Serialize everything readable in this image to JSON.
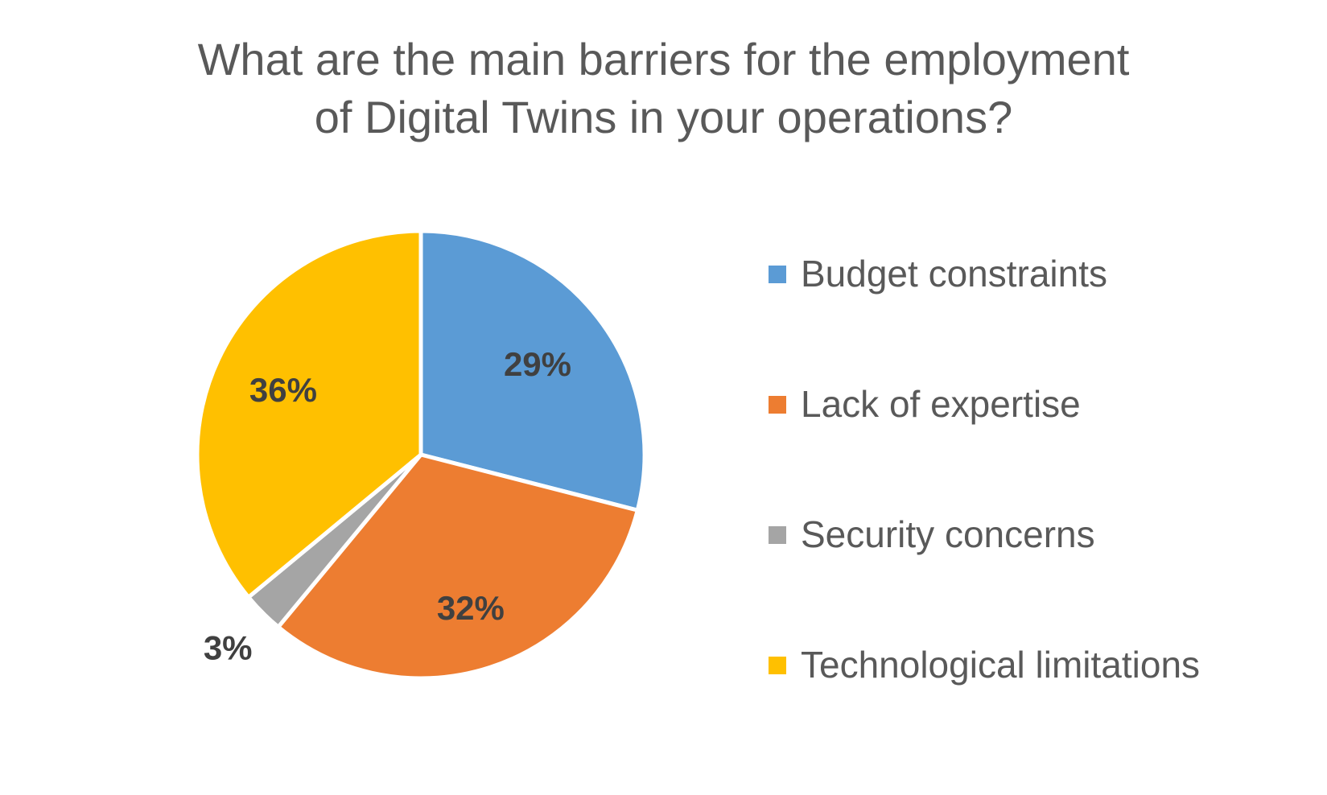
{
  "chart_data": {
    "type": "pie",
    "title_lines": [
      "What are the main barriers for the employment",
      "of Digital Twins in your operations?"
    ],
    "categories": [
      "Budget constraints",
      "Lack of expertise",
      "Security concerns",
      "Technological limitations"
    ],
    "values": [
      29,
      32,
      3,
      36
    ],
    "data_labels": [
      "29%",
      "32%",
      "3%",
      "36%"
    ],
    "colors": [
      "#5B9BD5",
      "#ED7D31",
      "#A5A5A5",
      "#FFC000"
    ],
    "legend": "right",
    "start_angle": "12 o'clock, clockwise"
  }
}
